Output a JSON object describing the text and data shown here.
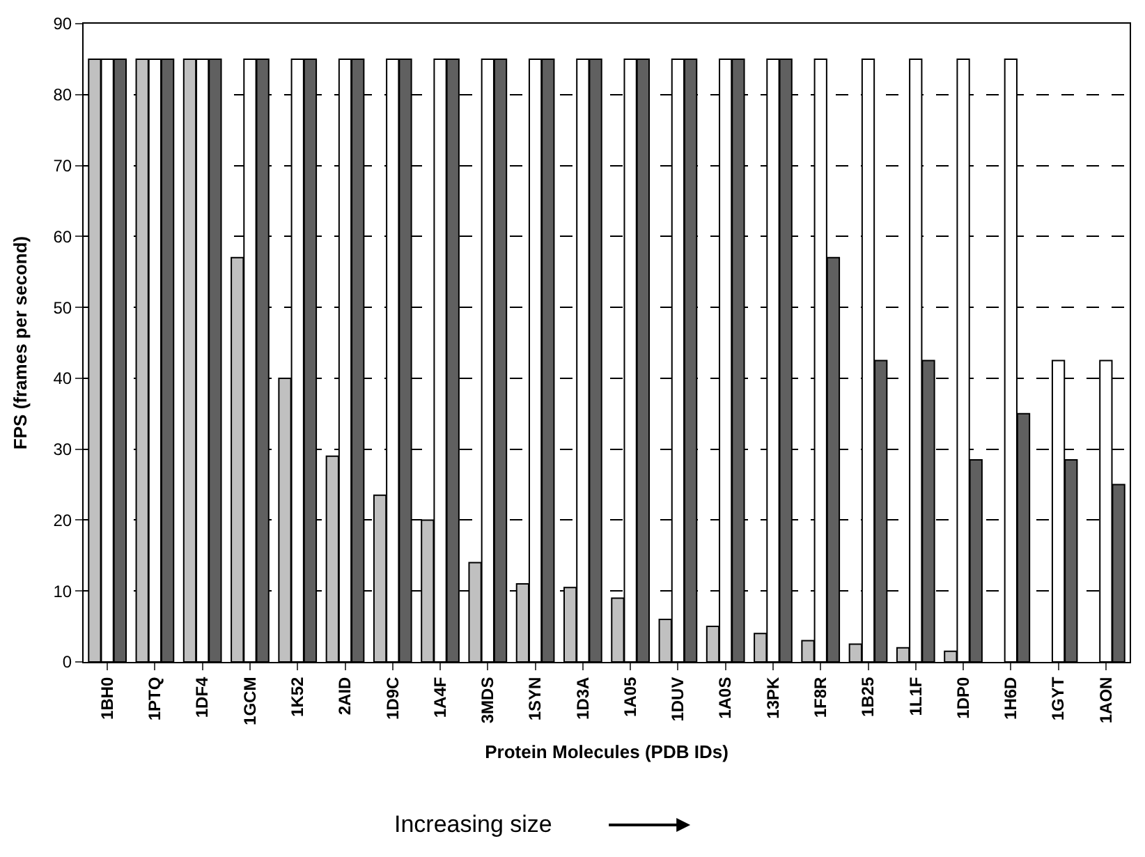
{
  "chart_data": {
    "type": "bar",
    "xlabel": "Protein Molecules (PDB IDs)",
    "ylabel": "FPS (frames per second)",
    "categories": [
      "1BH0",
      "1PTQ",
      "1DF4",
      "1GCM",
      "1K52",
      "2AID",
      "1D9C",
      "1A4F",
      "3MDS",
      "1SYN",
      "1D3A",
      "1A05",
      "1DUV",
      "1A0S",
      "13PK",
      "1F8R",
      "1B25",
      "1L1F",
      "1DP0",
      "1H6D",
      "1GYT",
      "1AON"
    ],
    "series": [
      {
        "color": "#c0c0c0",
        "values": [
          85,
          85,
          85,
          57,
          40,
          29,
          23.5,
          20,
          14,
          11,
          10.5,
          9,
          6,
          5,
          4,
          3,
          2.5,
          2,
          1.5,
          null,
          null,
          null
        ]
      },
      {
        "color": "#ffffff",
        "values": [
          85,
          85,
          85,
          85,
          85,
          85,
          85,
          85,
          85,
          85,
          85,
          85,
          85,
          85,
          85,
          85,
          85,
          85,
          85,
          85,
          42.5,
          42.5
        ]
      },
      {
        "color": "#606060",
        "values": [
          85,
          85,
          85,
          85,
          85,
          85,
          85,
          85,
          85,
          85,
          85,
          85,
          85,
          85,
          85,
          57,
          42.5,
          42.5,
          28.5,
          35,
          28.5,
          25
        ]
      }
    ],
    "ylim": [
      0,
      90
    ],
    "yticks": [
      0,
      10,
      20,
      30,
      40,
      50,
      60,
      70,
      80,
      90
    ],
    "grid": "y",
    "annotations": [
      "Increasing size"
    ]
  }
}
